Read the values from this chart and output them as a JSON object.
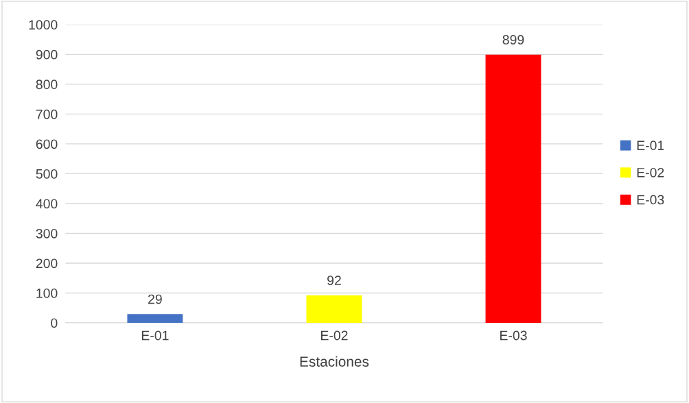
{
  "chart_data": {
    "type": "bar",
    "xlabel": "Estaciones",
    "categories": [
      "E-01",
      "E-02",
      "E-03"
    ],
    "stacked": true,
    "series": [
      {
        "name": "E-01",
        "color": "#4472c4",
        "values": [
          29,
          null,
          null
        ]
      },
      {
        "name": "E-02",
        "color": "#ffff00",
        "values": [
          null,
          92,
          null
        ]
      },
      {
        "name": "E-03",
        "color": "#ff0000",
        "values": [
          null,
          null,
          899
        ]
      }
    ],
    "data_labels": true,
    "ylim": [
      0,
      1000
    ],
    "yticks": [
      0,
      100,
      200,
      300,
      400,
      500,
      600,
      700,
      800,
      900,
      1000
    ],
    "grid": "y",
    "legend": "right"
  }
}
